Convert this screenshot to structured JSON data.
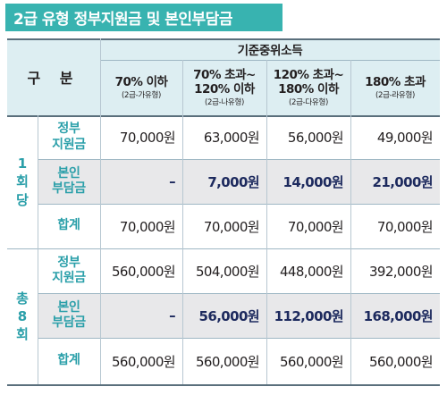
{
  "title": "2급 유형 정부지원금 및 본인부담금",
  "header": {
    "gubun": "구 분",
    "income_group": "기준중위소득",
    "columns": [
      {
        "main": "70% 이하",
        "sub": "(2급-가유형)"
      },
      {
        "main": "70% 초과~\n120% 이하",
        "sub": "(2급-나유형)"
      },
      {
        "main": "120% 초과~\n180% 이하",
        "sub": "(2급-다유형)"
      },
      {
        "main": "180% 초과",
        "sub": "(2급-라유형)"
      }
    ]
  },
  "groups": [
    {
      "label": [
        "1",
        "회",
        "당"
      ],
      "rows": [
        {
          "label": "정부\n지원금",
          "values": [
            "70,000원",
            "63,000원",
            "56,000원",
            "49,000원"
          ],
          "bold": false
        },
        {
          "label": "본인\n부담금",
          "values": [
            "–",
            "7,000원",
            "14,000원",
            "21,000원"
          ],
          "bold": true
        },
        {
          "label": "합계",
          "values": [
            "70,000원",
            "70,000원",
            "70,000원",
            "70,000원"
          ],
          "bold": false
        }
      ]
    },
    {
      "label": [
        "총",
        "8",
        "회"
      ],
      "rows": [
        {
          "label": "정부\n지원금",
          "values": [
            "560,000원",
            "504,000원",
            "448,000원",
            "392,000원"
          ],
          "bold": false
        },
        {
          "label": "본인\n부담금",
          "values": [
            "–",
            "56,000원",
            "112,000원",
            "168,000원"
          ],
          "bold": true
        },
        {
          "label": "합계",
          "values": [
            "560,000원",
            "560,000원",
            "560,000원",
            "560,000원"
          ],
          "bold": false
        }
      ]
    }
  ]
}
